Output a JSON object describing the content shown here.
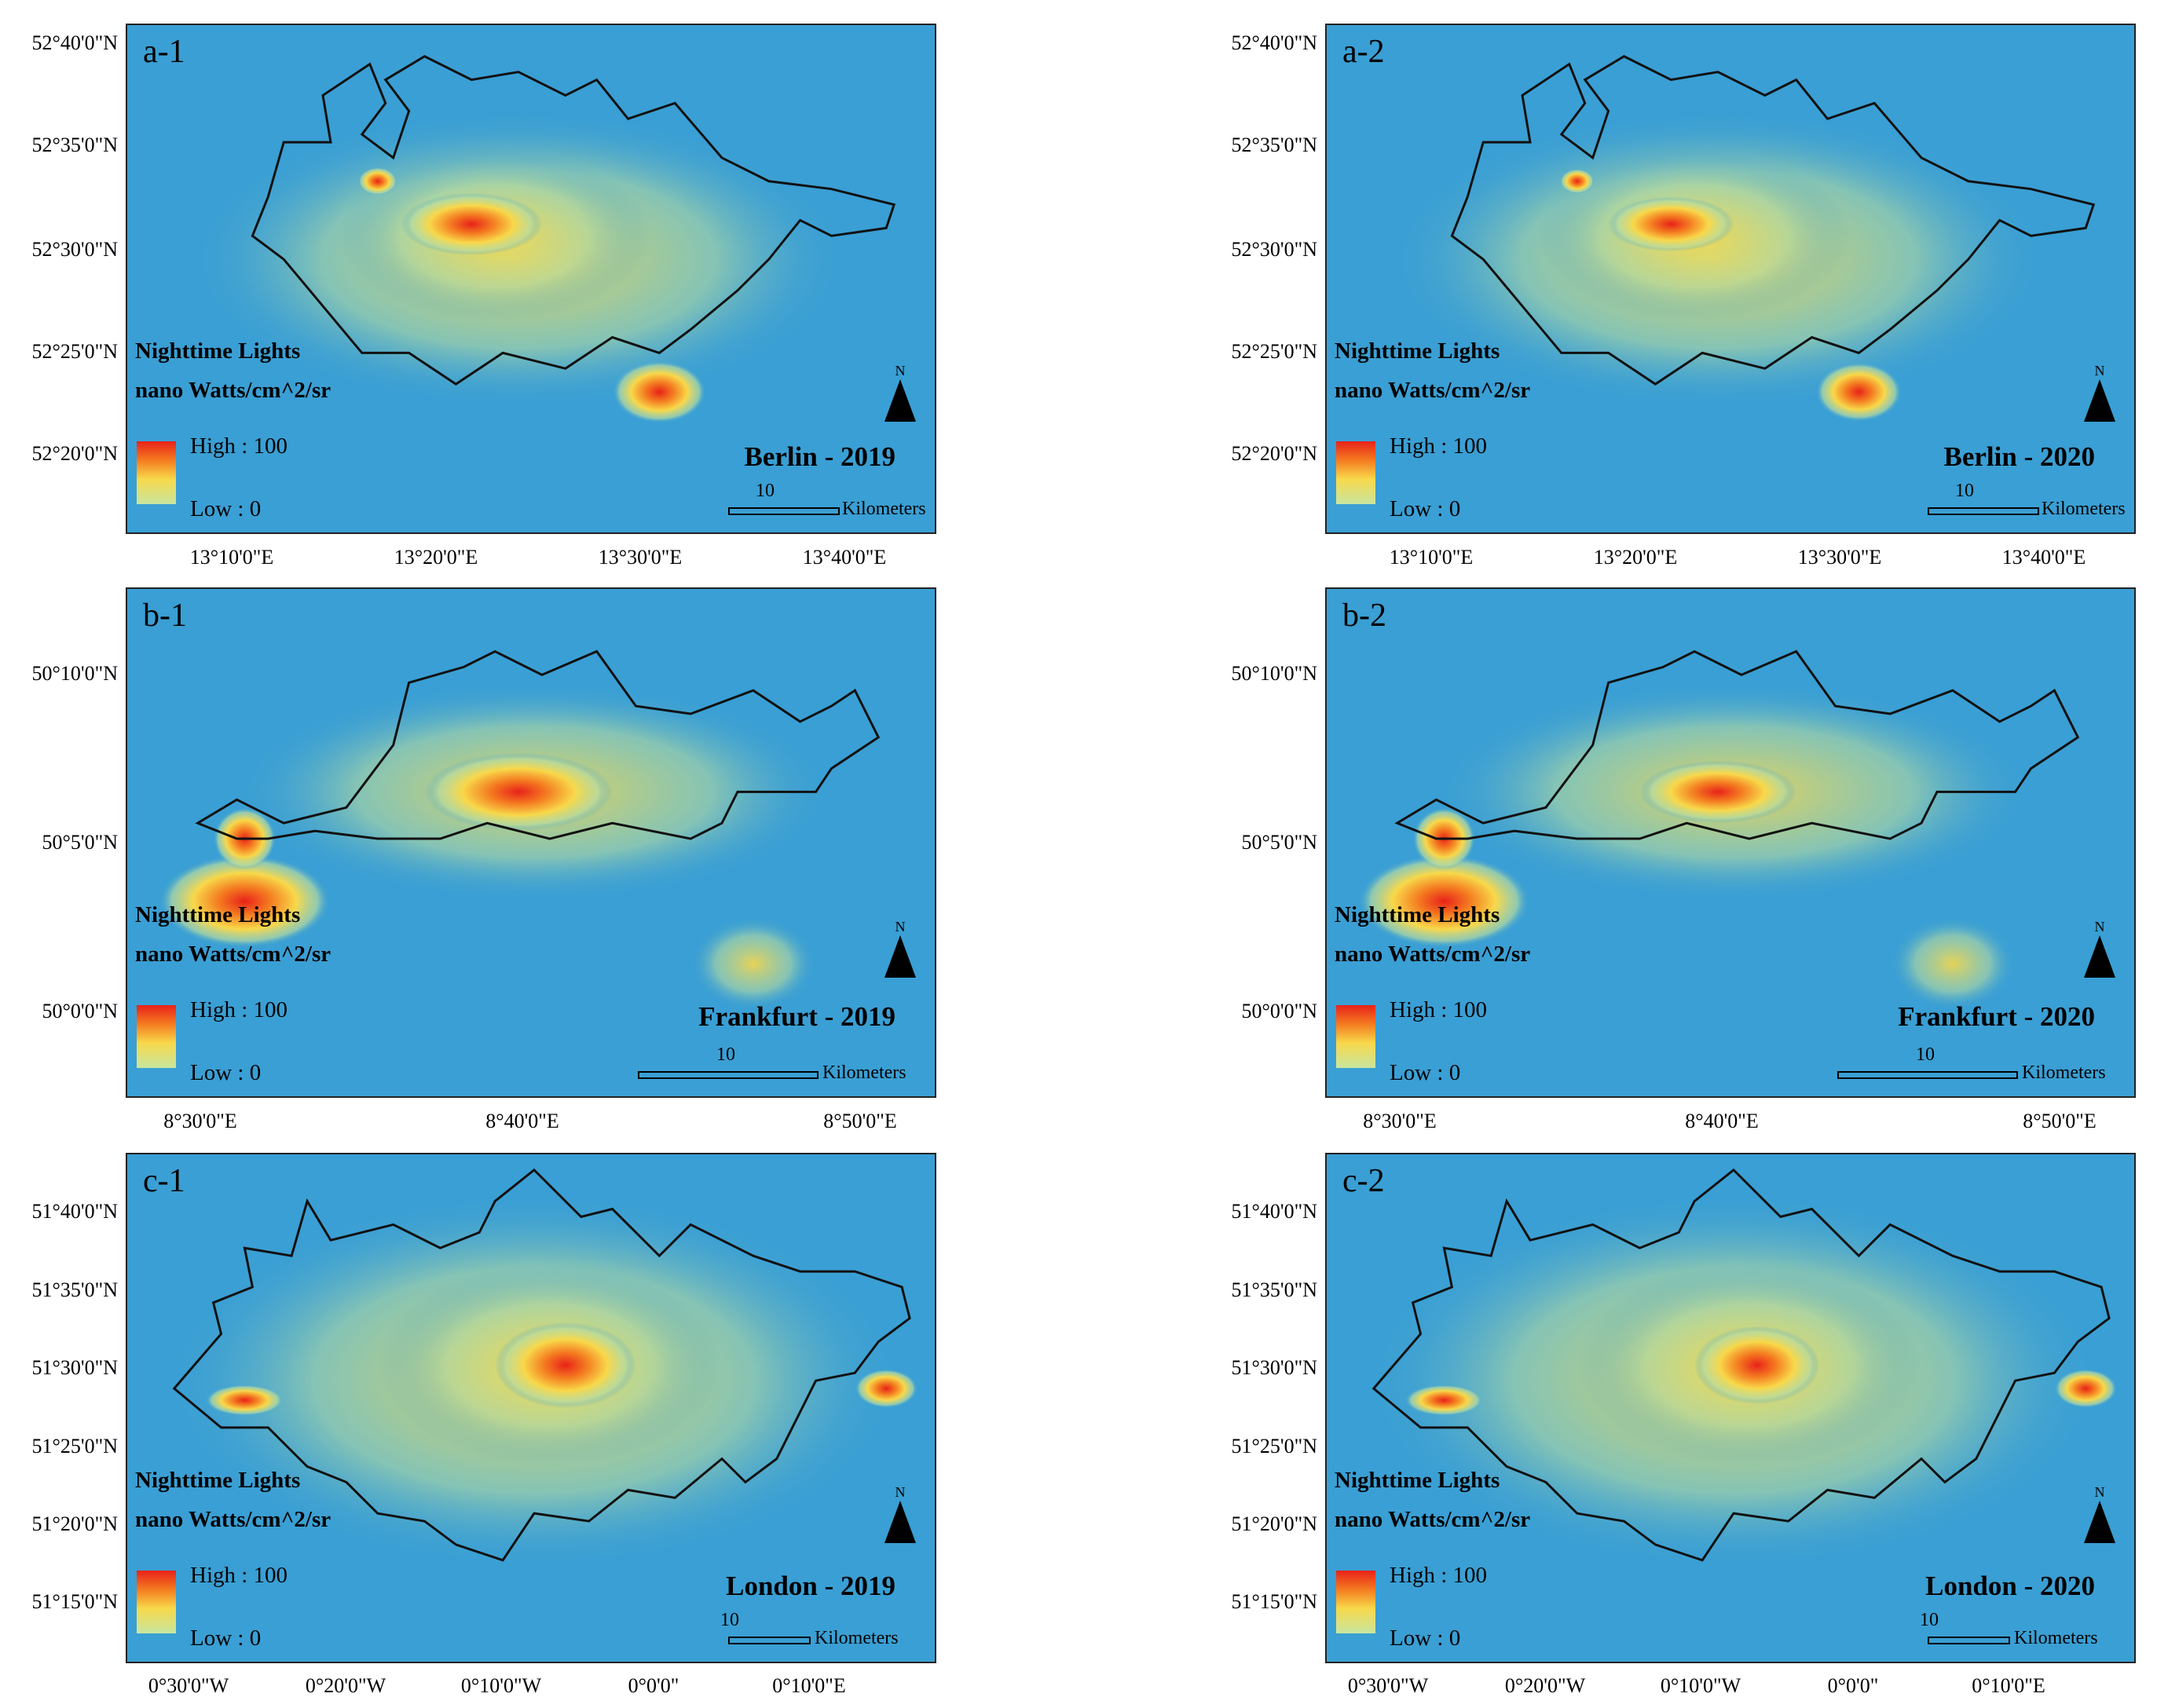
{
  "colors": {
    "map_background": "#3a9fd4",
    "low": "#c8e6a0",
    "mid": "#f8d84a",
    "high": "#e8221a",
    "boundary": "#111111"
  },
  "legend": {
    "title_line1": "Nighttime Lights",
    "title_line2": "nano Watts/cm^2/sr",
    "high": "High : 100",
    "low": "Low : 0"
  },
  "scale_bar": {
    "value": "10",
    "unit": "Kilometers"
  },
  "north_label": "N",
  "panels": [
    {
      "id": "a-1",
      "city": "Berlin - 2019"
    },
    {
      "id": "a-2",
      "city": "Berlin - 2020"
    },
    {
      "id": "b-1",
      "city": "Frankfurt - 2019"
    },
    {
      "id": "b-2",
      "city": "Frankfurt - 2020"
    },
    {
      "id": "c-1",
      "city": "London - 2019"
    },
    {
      "id": "c-2",
      "city": "London - 2020"
    }
  ],
  "axes": {
    "berlin": {
      "lat": [
        "52°40'0\"N",
        "52°35'0\"N",
        "52°30'0\"N",
        "52°25'0\"N",
        "52°20'0\"N"
      ],
      "lon": [
        "13°10'0\"E",
        "13°20'0\"E",
        "13°30'0\"E",
        "13°40'0\"E"
      ]
    },
    "frankfurt": {
      "lat": [
        "50°10'0\"N",
        "50°5'0\"N",
        "50°0'0\"N"
      ],
      "lon": [
        "8°30'0\"E",
        "8°40'0\"E",
        "8°50'0\"E"
      ]
    },
    "london": {
      "lat": [
        "51°40'0\"N",
        "51°35'0\"N",
        "51°30'0\"N",
        "51°25'0\"N",
        "51°20'0\"N",
        "51°15'0\"N"
      ],
      "lon": [
        "0°30'0\"W",
        "0°20'0\"W",
        "0°10'0\"W",
        "0°0'0\"",
        "0°10'0\"E"
      ]
    }
  }
}
